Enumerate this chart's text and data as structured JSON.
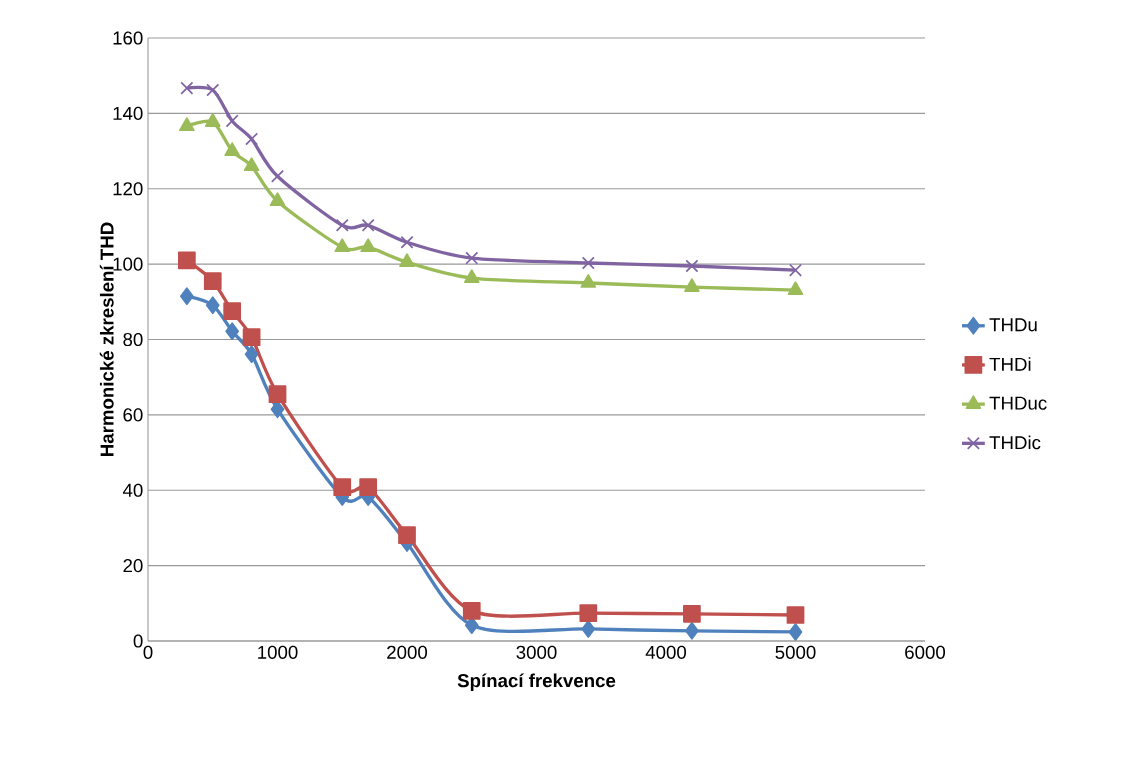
{
  "chart_data": {
    "type": "line",
    "xlabel": "Spínací frekvence",
    "ylabel": "Harmonické zkreslení THD",
    "x": [
      300,
      500,
      650,
      800,
      1000,
      1500,
      1700,
      2000,
      2500,
      3400,
      4200,
      5000
    ],
    "series": [
      {
        "name": "THDu",
        "color": "#4f81bd",
        "marker": "diamond",
        "values": [
          91.5,
          89.1,
          82.2,
          76.1,
          61.5,
          38.2,
          38.2,
          26,
          4.2,
          3.2,
          2.7,
          2.4
        ]
      },
      {
        "name": "THDi",
        "color": "#c0504d",
        "marker": "square",
        "values": [
          101,
          95.5,
          87.5,
          80.6,
          65.5,
          40.8,
          40.8,
          28.1,
          8,
          7.4,
          7.2,
          6.9
        ]
      },
      {
        "name": "THDuc",
        "color": "#9bbb59",
        "marker": "triangle",
        "values": [
          136.6,
          137.7,
          130,
          126,
          116.7,
          104.5,
          104.5,
          100.5,
          96.3,
          95,
          93.9,
          93.1
        ]
      },
      {
        "name": "THDic",
        "color": "#8064a2",
        "marker": "cross",
        "values": [
          146.7,
          146.2,
          138,
          133.2,
          123.3,
          110.3,
          110.3,
          105.8,
          101.6,
          100.3,
          99.5,
          98.4
        ]
      }
    ],
    "xlim": [
      0,
      6000
    ],
    "xticks": [
      0,
      1000,
      2000,
      3000,
      4000,
      5000,
      6000
    ],
    "ylim": [
      0,
      160
    ],
    "yticks": [
      0,
      20,
      40,
      60,
      80,
      100,
      120,
      140,
      160
    ],
    "grid": "y",
    "legend": "right",
    "line_style": "solid"
  }
}
